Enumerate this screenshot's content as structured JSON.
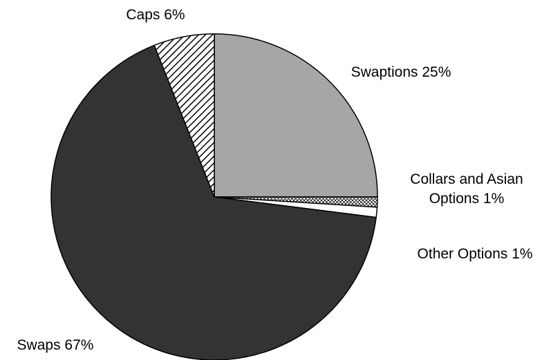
{
  "chart_data": {
    "type": "pie",
    "categories": [
      "Swaptions",
      "Collars and Asian Options",
      "Other Options",
      "Swaps",
      "Caps"
    ],
    "values": [
      25,
      1,
      1,
      67,
      6
    ],
    "value_labels": [
      "25%",
      "1%",
      "1%",
      "67%",
      "6%"
    ],
    "colors": [
      "#a6a6a6",
      "#ffffff",
      "#ffffff",
      "#333333",
      "#ffffff"
    ],
    "hatch": [
      null,
      "cross",
      null,
      null,
      "diagonal"
    ]
  }
}
